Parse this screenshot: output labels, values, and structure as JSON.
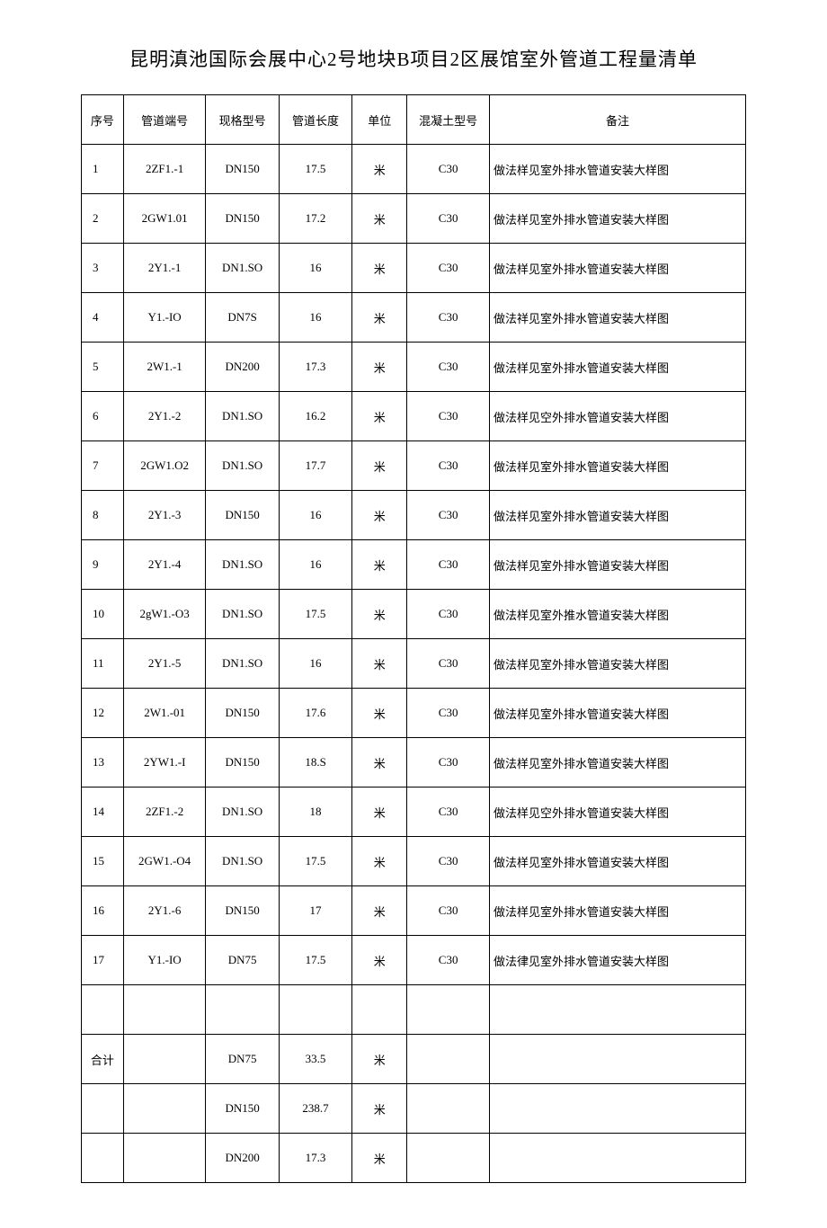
{
  "title": "昆明滇池国际会展中心2号地块B项目2区展馆室外管道工程量清单",
  "columns": [
    "序号",
    "管道端号",
    "现格型号",
    "管道长度",
    "单位",
    "混凝土型号",
    "备注"
  ],
  "rows": [
    {
      "seq": "1",
      "end": "2ZF1.-1",
      "model": "DN150",
      "length": "17.5",
      "unit": "米",
      "concrete": "C30",
      "remark": "做法样见室外排水管道安装大样图"
    },
    {
      "seq": "2",
      "end": "2GW1.01",
      "model": "DN150",
      "length": "17.2",
      "unit": "米",
      "concrete": "C30",
      "remark": "做法样见室外排水管道安装大样图"
    },
    {
      "seq": "3",
      "end": "2Y1.-1",
      "model": "DN1.SO",
      "length": "16",
      "unit": "米",
      "concrete": "C30",
      "remark": "做法样见室外排水管道安装大样图"
    },
    {
      "seq": "4",
      "end": "Y1.-IO",
      "model": "DN7S",
      "length": "16",
      "unit": "米",
      "concrete": "C30",
      "remark": "做法祥见室外排水管道安装大样图"
    },
    {
      "seq": "5",
      "end": "2W1.-1",
      "model": "DN200",
      "length": "17.3",
      "unit": "米",
      "concrete": "C30",
      "remark": "做法样见室外排水管道安装大样图"
    },
    {
      "seq": "6",
      "end": "2Y1.-2",
      "model": "DN1.SO",
      "length": "16.2",
      "unit": "米",
      "concrete": "C30",
      "remark": "做法样见空外排水管道安装大样图"
    },
    {
      "seq": "7",
      "end": "2GW1.O2",
      "model": "DN1.SO",
      "length": "17.7",
      "unit": "米",
      "concrete": "C30",
      "remark": "做法样见室外排水管道安装大样图"
    },
    {
      "seq": "8",
      "end": "2Y1.-3",
      "model": "DN150",
      "length": "16",
      "unit": "米",
      "concrete": "C30",
      "remark": "做法样见室外排水管道安装大样图"
    },
    {
      "seq": "9",
      "end": "2Y1.-4",
      "model": "DN1.SO",
      "length": "16",
      "unit": "米",
      "concrete": "C30",
      "remark": "做法样见室外排水管道安装大样图"
    },
    {
      "seq": "10",
      "end": "2gW1.-O3",
      "model": "DN1.SO",
      "length": "17.5",
      "unit": "米",
      "concrete": "C30",
      "remark": "做法样见室外推水管道安装大样图"
    },
    {
      "seq": "11",
      "end": "2Y1.-5",
      "model": "DN1.SO",
      "length": "16",
      "unit": "米",
      "concrete": "C30",
      "remark": "做法样见室外排水管道安装大样图"
    },
    {
      "seq": "12",
      "end": "2W1.-01",
      "model": "DN150",
      "length": "17.6",
      "unit": "米",
      "concrete": "C30",
      "remark": "做法样见室外排水管道安装大样图"
    },
    {
      "seq": "13",
      "end": "2YW1.-I",
      "model": "DN150",
      "length": "18.S",
      "unit": "米",
      "concrete": "C30",
      "remark": "做法样见室外排水管道安装大样图"
    },
    {
      "seq": "14",
      "end": "2ZF1.-2",
      "model": "DN1.SO",
      "length": "18",
      "unit": "米",
      "concrete": "C30",
      "remark": "做法样见空外排水管道安装大样图"
    },
    {
      "seq": "15",
      "end": "2GW1.-O4",
      "model": "DN1.SO",
      "length": "17.5",
      "unit": "米",
      "concrete": "C30",
      "remark": "做法样见室外排水管道安装大样图"
    },
    {
      "seq": "16",
      "end": "2Y1.-6",
      "model": "DN150",
      "length": "17",
      "unit": "米",
      "concrete": "C30",
      "remark": "做法样见室外排水管道安装大样图"
    },
    {
      "seq": "17",
      "end": "Y1.-IO",
      "model": "DN75",
      "length": "17.5",
      "unit": "米",
      "concrete": "C30",
      "remark": "做法律见室外排水管道安装大样图"
    },
    {
      "seq": "",
      "end": "",
      "model": "",
      "length": "",
      "unit": "",
      "concrete": "",
      "remark": ""
    },
    {
      "seq": "合计",
      "end": "",
      "model": "DN75",
      "length": "33.5",
      "unit": "米",
      "concrete": "",
      "remark": ""
    },
    {
      "seq": "",
      "end": "",
      "model": "DN150",
      "length": "238.7",
      "unit": "米",
      "concrete": "",
      "remark": ""
    },
    {
      "seq": "",
      "end": "",
      "model": "DN200",
      "length": "17.3",
      "unit": "米",
      "concrete": "",
      "remark": ""
    }
  ]
}
